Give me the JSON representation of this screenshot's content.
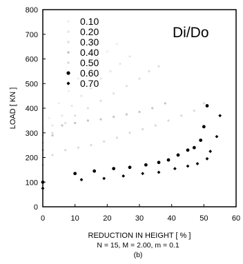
{
  "chart_data": {
    "type": "scatter",
    "ratio_label": "Di/Do",
    "xlabel": "REDUCTION IN HEIGHT [ % ]",
    "ylabel": "LOAD [ KN ]",
    "caption_line1": "N = 15, M = 2.00, m = 0.1",
    "caption_line2": "(b)",
    "xlim": [
      0,
      60
    ],
    "ylim": [
      0,
      800
    ],
    "x_ticks": [
      "0",
      "10",
      "20",
      "30",
      "40",
      "50",
      "60"
    ],
    "y_ticks": [
      "0",
      "100",
      "200",
      "300",
      "400",
      "500",
      "600",
      "700",
      "800"
    ],
    "legend_position": "top-left",
    "grid": false,
    "series": [
      {
        "name": "0.10",
        "color": "#eeeeee",
        "marker": "dot",
        "points": [
          [
            0,
            320
          ],
          [
            2,
            360
          ],
          [
            5,
            420
          ],
          [
            8,
            470
          ],
          [
            11,
            520
          ],
          [
            14,
            560
          ],
          [
            17,
            600
          ],
          [
            20,
            630
          ],
          [
            23,
            660
          ]
        ]
      },
      {
        "name": "0.20",
        "color": "#e6e6e6",
        "marker": "dot",
        "points": [
          [
            0,
            290
          ],
          [
            3,
            330
          ],
          [
            6,
            370
          ],
          [
            9,
            410
          ],
          [
            12,
            450
          ],
          [
            15,
            480
          ],
          [
            18,
            520
          ],
          [
            21,
            550
          ],
          [
            24,
            580
          ],
          [
            27,
            610
          ]
        ]
      },
      {
        "name": "0.30",
        "color": "#dedede",
        "marker": "dot",
        "points": [
          [
            0,
            260
          ],
          [
            3,
            300
          ],
          [
            7,
            340
          ],
          [
            10,
            370
          ],
          [
            14,
            400
          ],
          [
            18,
            430
          ],
          [
            22,
            460
          ],
          [
            26,
            490
          ],
          [
            30,
            520
          ],
          [
            33,
            550
          ],
          [
            36,
            570
          ]
        ]
      },
      {
        "name": "0.40",
        "color": "#c4c4c4",
        "marker": "dot",
        "points": [
          [
            0,
            230
          ],
          [
            3,
            290
          ],
          [
            6,
            330
          ],
          [
            10,
            340
          ],
          [
            14,
            350
          ],
          [
            18,
            355
          ],
          [
            22,
            365
          ],
          [
            26,
            375
          ],
          [
            30,
            385
          ],
          [
            34,
            400
          ],
          [
            38,
            420
          ]
        ]
      },
      {
        "name": "0.50",
        "color": "#dadada",
        "marker": "dot",
        "points": [
          [
            0,
            170
          ],
          [
            3,
            210
          ],
          [
            7,
            230
          ],
          [
            11,
            240
          ],
          [
            15,
            250
          ],
          [
            19,
            265
          ],
          [
            23,
            280
          ],
          [
            27,
            300
          ],
          [
            31,
            315
          ],
          [
            35,
            330
          ],
          [
            39,
            350
          ],
          [
            43,
            370
          ],
          [
            47,
            390
          ],
          [
            50,
            420
          ]
        ]
      },
      {
        "name": "0.60",
        "color": "#000000",
        "marker": "dot",
        "points": [
          [
            0,
            100
          ],
          [
            10,
            135
          ],
          [
            16,
            145
          ],
          [
            22,
            155
          ],
          [
            27,
            160
          ],
          [
            32,
            170
          ],
          [
            36,
            180
          ],
          [
            39,
            190
          ],
          [
            42,
            210
          ],
          [
            45,
            230
          ],
          [
            47,
            240
          ],
          [
            49,
            270
          ],
          [
            50,
            325
          ],
          [
            51,
            410
          ]
        ]
      },
      {
        "name": "0.70",
        "color": "#000000",
        "marker": "diamond",
        "points": [
          [
            0,
            75
          ],
          [
            12,
            110
          ],
          [
            19,
            115
          ],
          [
            25,
            125
          ],
          [
            31,
            135
          ],
          [
            36,
            140
          ],
          [
            41,
            155
          ],
          [
            45,
            165
          ],
          [
            48,
            175
          ],
          [
            51,
            195
          ],
          [
            52,
            225
          ],
          [
            54,
            285
          ],
          [
            55,
            370
          ]
        ]
      }
    ]
  }
}
